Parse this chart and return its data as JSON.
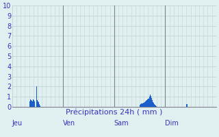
{
  "title": "Précipitations 24h ( mm )",
  "background_color": "#e0f0f0",
  "bar_color": "#1a5fcc",
  "grid_color_h": "#b8cccc",
  "grid_color_v": "#c8d8d8",
  "label_color": "#3333bb",
  "day_sep_color": "#808090",
  "ylim": [
    0,
    10
  ],
  "yticks": [
    0,
    1,
    2,
    3,
    4,
    5,
    6,
    7,
    8,
    9,
    10
  ],
  "day_labels": [
    "Jeu",
    "Ven",
    "Sam",
    "Dim"
  ],
  "day_positions": [
    0,
    72,
    144,
    216
  ],
  "num_bars": 288,
  "bar_values": [
    0,
    0,
    0,
    0,
    0,
    0,
    0,
    0,
    0,
    0,
    0,
    0,
    0,
    0,
    0,
    0,
    0,
    0,
    0,
    0,
    0,
    0,
    0,
    0,
    0.55,
    0.75,
    0.65,
    0.6,
    0.5,
    0.7,
    0.65,
    0.55,
    0,
    0,
    2.0,
    0.65,
    0.55,
    0.45,
    0.25,
    0.15,
    0,
    0,
    0,
    0,
    0,
    0,
    0,
    0,
    0,
    0,
    0,
    0,
    0,
    0,
    0,
    0,
    0,
    0,
    0,
    0,
    0,
    0,
    0,
    0,
    0,
    0,
    0,
    0,
    0,
    0,
    0,
    0,
    0,
    0,
    0,
    0,
    0,
    0,
    0,
    0,
    0,
    0,
    0,
    0,
    0,
    0,
    0,
    0,
    0,
    0,
    0,
    0,
    0,
    0,
    0,
    0,
    0,
    0,
    0,
    0,
    0,
    0,
    0,
    0,
    0,
    0,
    0,
    0,
    0,
    0,
    0,
    0,
    0,
    0,
    0,
    0,
    0,
    0,
    0,
    0,
    0,
    0,
    0,
    0,
    0,
    0,
    0,
    0,
    0,
    0,
    0,
    0,
    0,
    0,
    0,
    0,
    0,
    0,
    0,
    0,
    0,
    0,
    0,
    0,
    0.2,
    0,
    0,
    0,
    0,
    0,
    0,
    0,
    0,
    0,
    0,
    0,
    0,
    0,
    0,
    0,
    0,
    0,
    0,
    0,
    0,
    0,
    0,
    0,
    0,
    0,
    0,
    0,
    0,
    0,
    0,
    0,
    0,
    0,
    0,
    0,
    0.2,
    0.25,
    0.3,
    0.32,
    0.35,
    0.4,
    0.42,
    0.48,
    0.52,
    0.58,
    0.65,
    0.72,
    0.82,
    1.0,
    1.2,
    1.1,
    0.85,
    0.65,
    0.48,
    0.38,
    0.28,
    0.18,
    0.12,
    0.08,
    0,
    0,
    0,
    0,
    0,
    0,
    0,
    0,
    0,
    0,
    0,
    0,
    0,
    0,
    0,
    0,
    0,
    0,
    0,
    0,
    0,
    0,
    0,
    0,
    0,
    0,
    0,
    0,
    0,
    0,
    0,
    0,
    0,
    0,
    0,
    0,
    0,
    0,
    0,
    0,
    0,
    0,
    0.28,
    0.28,
    0,
    0,
    0,
    0,
    0,
    0,
    0,
    0,
    0,
    0,
    0,
    0,
    0,
    0,
    0,
    0,
    0,
    0,
    0,
    0,
    0,
    0,
    0,
    0,
    0,
    0,
    0,
    0,
    0,
    0,
    0,
    0,
    0,
    0,
    0,
    0,
    0,
    0,
    0,
    0,
    0,
    0,
    0,
    0,
    0,
    0,
    0,
    0,
    0,
    0,
    0,
    0,
    0,
    0,
    0,
    0,
    0,
    0,
    0,
    0,
    0,
    0,
    0,
    0,
    0,
    0,
    0,
    0,
    0,
    0,
    0,
    0
  ],
  "figsize": [
    3.2,
    2.0
  ],
  "dpi": 100,
  "title_fontsize": 8,
  "tick_fontsize": 7
}
